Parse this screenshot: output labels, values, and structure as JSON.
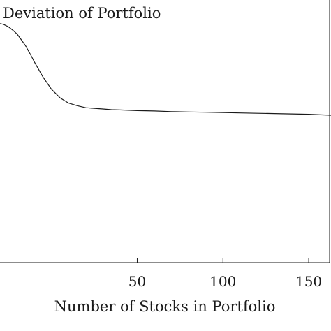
{
  "chart_data": {
    "type": "line",
    "ylabel": "Deviation of Portfolio",
    "xlabel": "Number of Stocks in Portfolio",
    "xlim": [
      -30,
      163
    ],
    "x_ticks": [
      50,
      100,
      150
    ],
    "x_tick_labels": [
      "50",
      "100",
      "150"
    ],
    "grid": false,
    "series": [
      {
        "x": [
          -30,
          -28,
          -25,
          -22,
          -20,
          -18,
          -15,
          -12,
          -10,
          -5,
          0,
          5,
          10,
          15,
          20,
          25,
          30,
          35,
          40,
          45,
          50,
          60,
          70,
          80,
          90,
          100,
          110,
          120,
          130,
          140,
          150,
          163
        ],
        "y": [
          36.4,
          36.3,
          35.9,
          35.3,
          34.8,
          34.1,
          33.0,
          31.6,
          30.6,
          28.3,
          26.4,
          25.1,
          24.3,
          23.9,
          23.6,
          23.5,
          23.4,
          23.3,
          23.25,
          23.2,
          23.15,
          23.1,
          23.0,
          22.95,
          22.9,
          22.85,
          22.8,
          22.75,
          22.7,
          22.65,
          22.6,
          22.45
        ]
      }
    ]
  }
}
